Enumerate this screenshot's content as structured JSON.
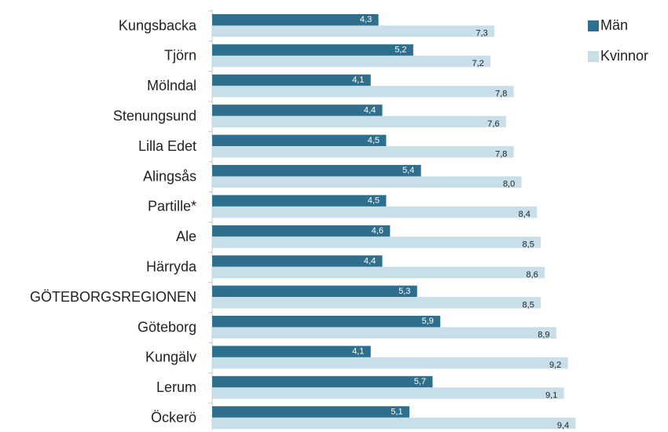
{
  "chart_data": {
    "type": "hbar",
    "categories": [
      "Kungsbacka",
      "Tjörn",
      "Mölndal",
      "Stenungsund",
      "Lilla Edet",
      "Alingsås",
      "Partille*",
      "Ale",
      "Härryda",
      "GÖTEBORGSREGIONEN",
      "Göteborg",
      "Kungälv",
      "Lerum",
      "Öckerö"
    ],
    "series": [
      {
        "name": "Män",
        "color": "#2f6f8e",
        "values": [
          4.3,
          5.2,
          4.1,
          4.4,
          4.5,
          5.4,
          4.5,
          4.6,
          4.4,
          5.3,
          5.9,
          4.1,
          5.7,
          5.1
        ],
        "value_labels": [
          "4,3",
          "5,2",
          "4,1",
          "4,4",
          "4,5",
          "5,4",
          "4,5",
          "4,6",
          "4,4",
          "5,3",
          "5,9",
          "4,1",
          "5,7",
          "5,1"
        ]
      },
      {
        "name": "Kvinnor",
        "color": "#c8dfea",
        "values": [
          7.3,
          7.2,
          7.8,
          7.6,
          7.8,
          8.0,
          8.4,
          8.5,
          8.6,
          8.5,
          8.9,
          9.2,
          9.1,
          9.4
        ],
        "value_labels": [
          "7,3",
          "7,2",
          "7,8",
          "7,6",
          "7,8",
          "8,0",
          "8,4",
          "8,5",
          "8,6",
          "8,5",
          "8,9",
          "9,2",
          "9,1",
          "9,4"
        ]
      }
    ],
    "legend": "top-right"
  }
}
